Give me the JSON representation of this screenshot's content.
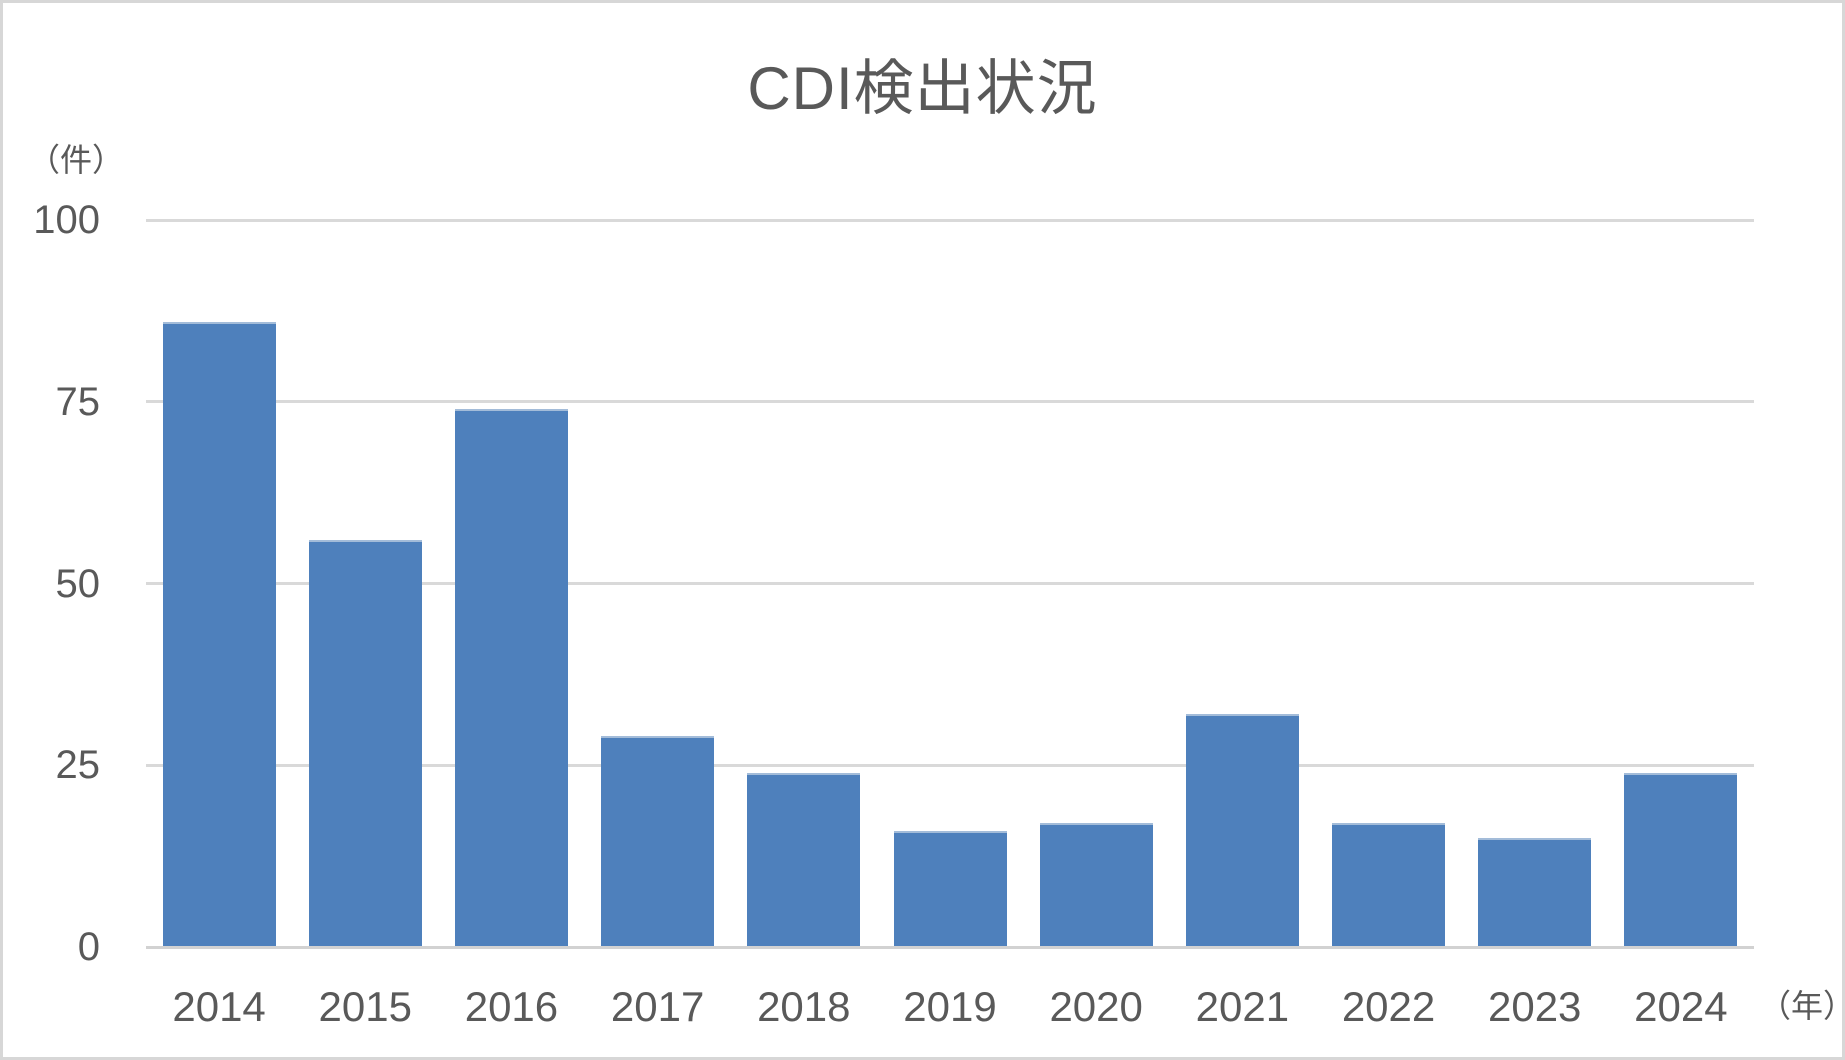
{
  "chart_data": {
    "type": "bar",
    "title": "CDI検出状況",
    "y_unit_label": "（件）",
    "x_unit_label": "（年）",
    "categories": [
      "2014",
      "2015",
      "2016",
      "2017",
      "2018",
      "2019",
      "2020",
      "2021",
      "2022",
      "2023",
      "2024"
    ],
    "values": [
      86,
      56,
      74,
      29,
      24,
      16,
      17,
      32,
      17,
      15,
      24
    ],
    "ylim": [
      0,
      100
    ],
    "yticks": [
      0,
      25,
      50,
      75,
      100
    ],
    "grid": true,
    "legend": "none",
    "bar_color": "#4e80bc",
    "bar_edge_color": "#a3bcd9",
    "gridline_color": "#d9d9d9",
    "axis_line_color": "#d2d2d2",
    "text_color": "#595959",
    "frame_color": "#d7d7d7"
  }
}
